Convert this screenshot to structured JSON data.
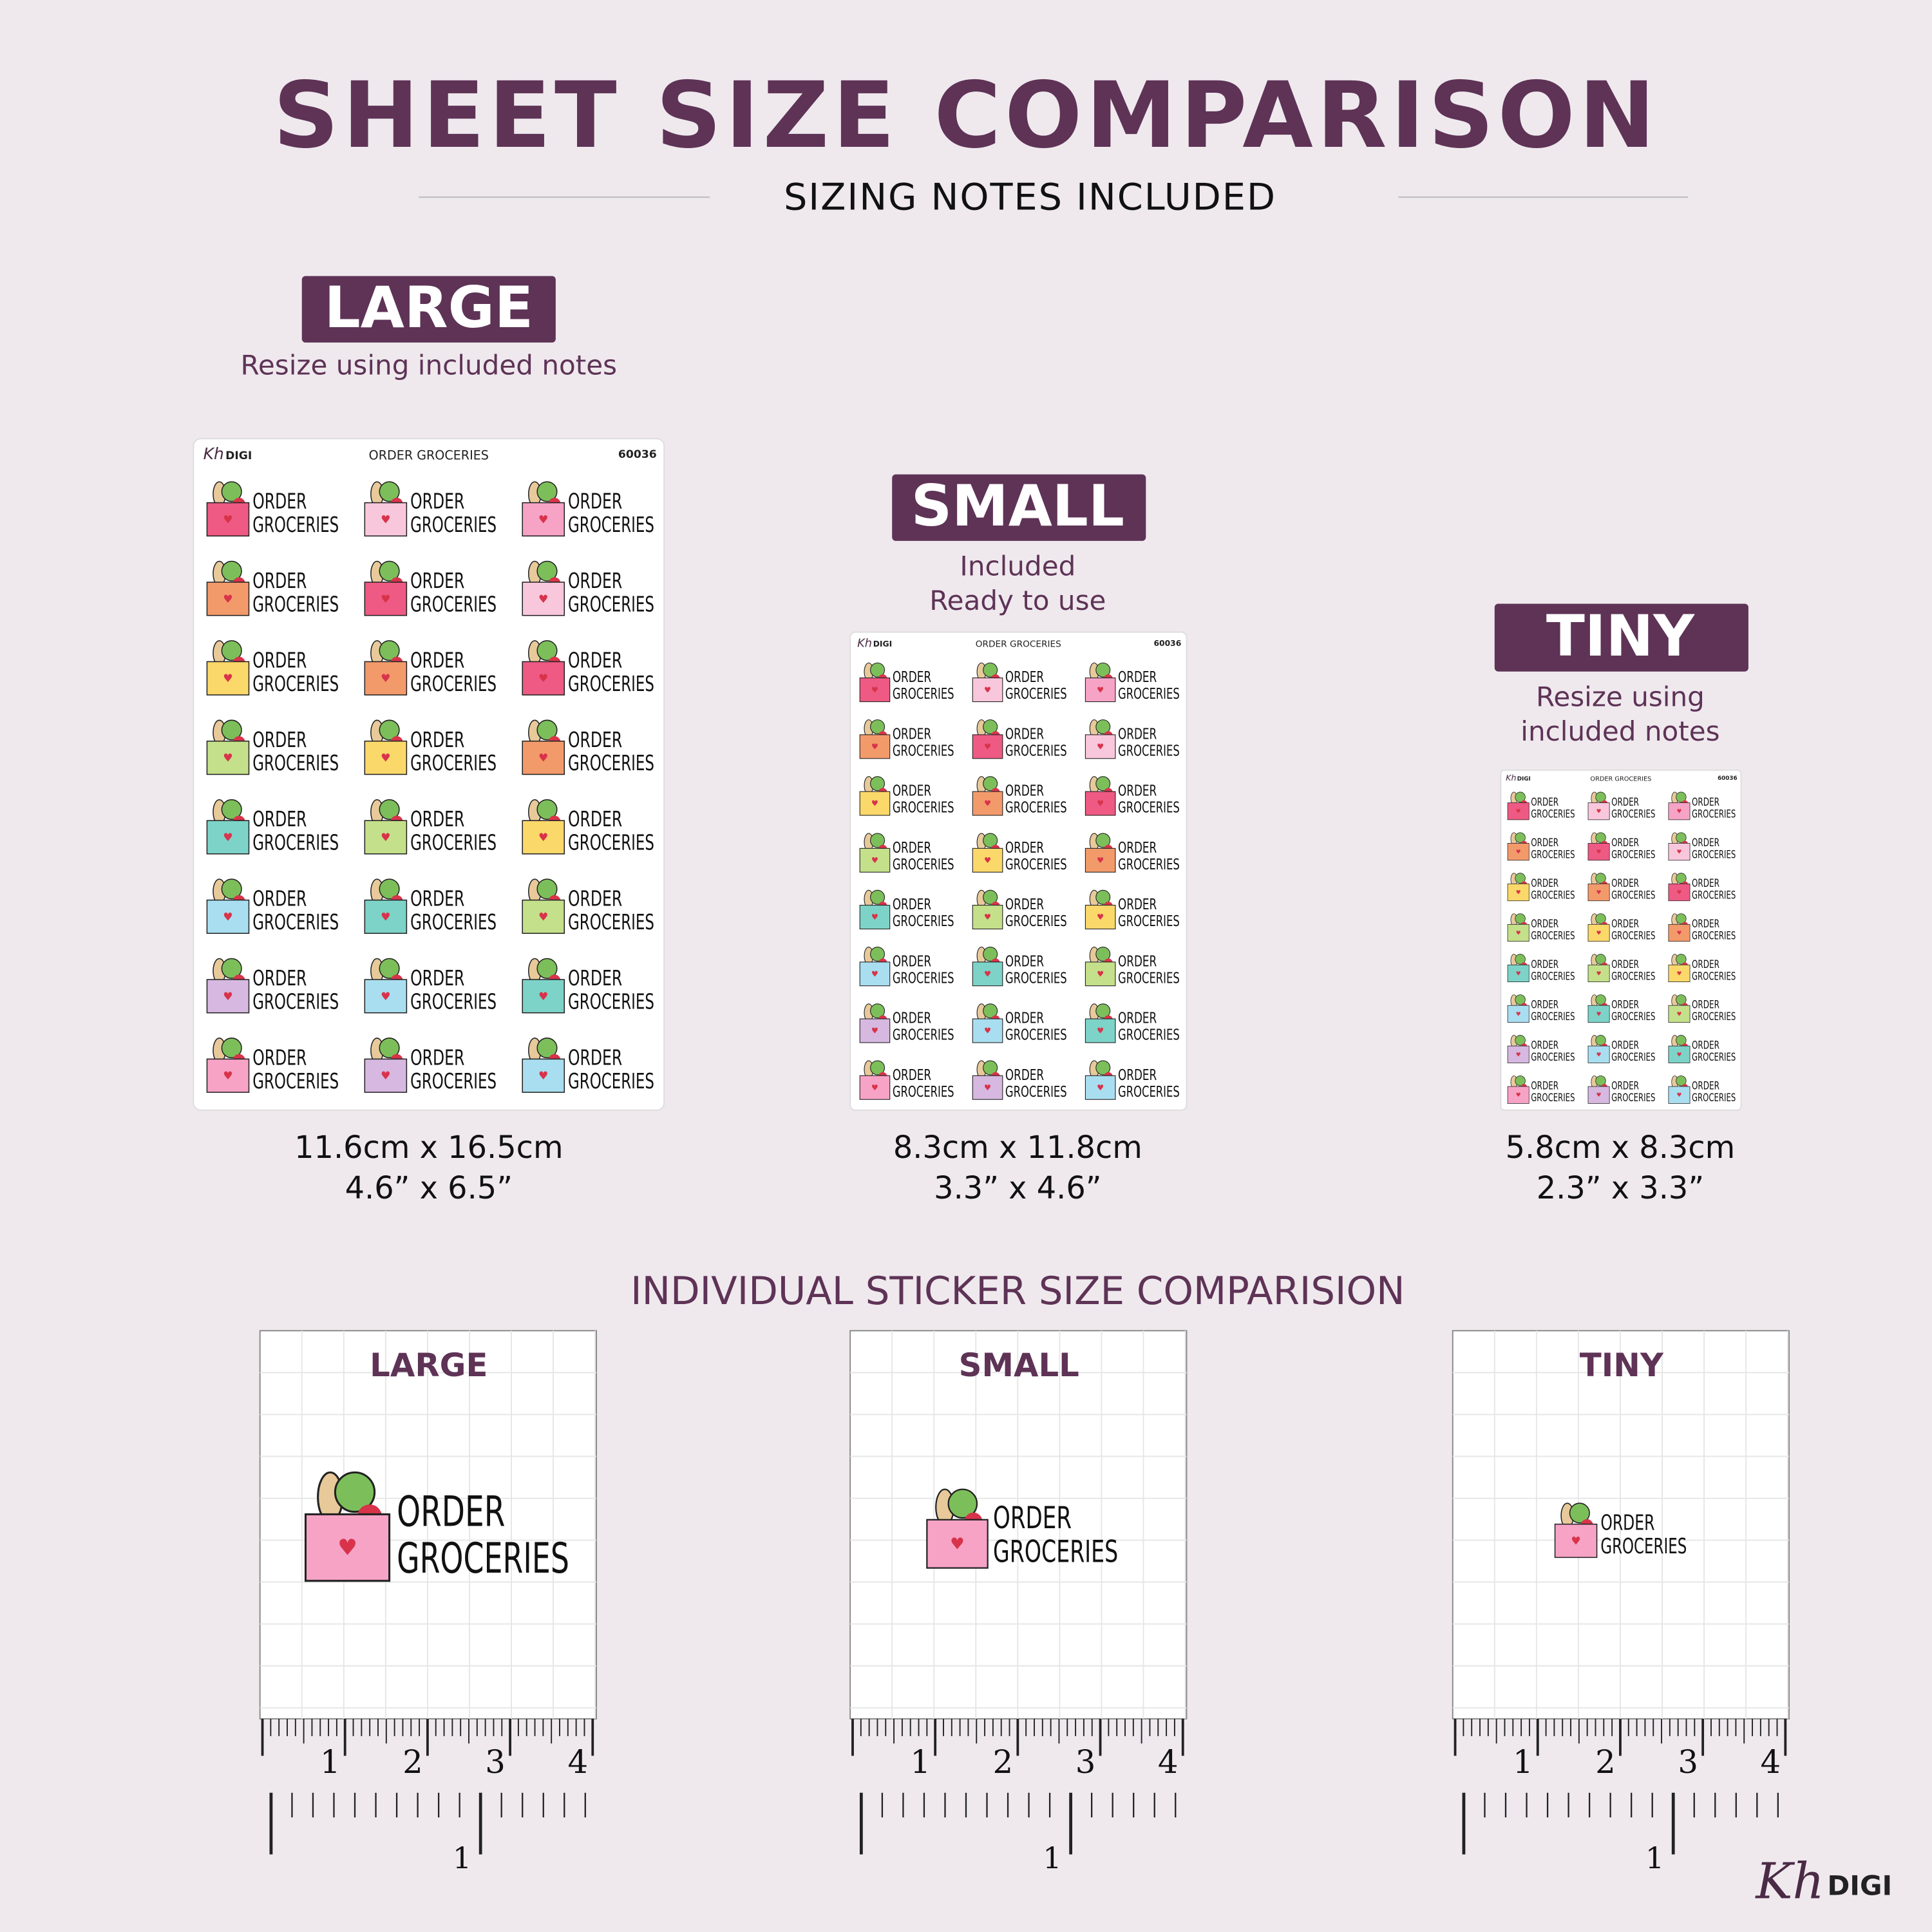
{
  "header": {
    "title": "SHEET SIZE COMPARISON",
    "subtitle": "SIZING NOTES INCLUDED"
  },
  "sheets": [
    {
      "label": "LARGE",
      "notes": [
        "Resize using included notes"
      ],
      "dims": [
        "11.6cm x 16.5cm",
        "4.6” x 6.5”"
      ]
    },
    {
      "label": "SMALL",
      "notes": [
        "Included",
        "Ready to use"
      ],
      "dims": [
        "8.3cm x 11.8cm",
        "3.3” x 4.6”"
      ]
    },
    {
      "label": "TINY",
      "notes": [
        "Resize using",
        "included notes"
      ],
      "dims": [
        "5.8cm x 8.3cm",
        "2.3” x 3.3”"
      ]
    }
  ],
  "sheet_header": {
    "name": "ORDER GROCERIES",
    "code": "60036"
  },
  "sticker": {
    "lines": [
      "ORDER",
      "GROCERIES"
    ],
    "bag_colors": [
      "#ee5a83",
      "#f9c7dc",
      "#f6a3c6",
      "#f39a6b",
      "#ee5a83",
      "#f9c7dc",
      "#fbd86a",
      "#f39a6b",
      "#ee5a83",
      "#c4e08a",
      "#fbd86a",
      "#f39a6b",
      "#7dd3c8",
      "#c4e08a",
      "#fbd86a",
      "#a9def0",
      "#7dd3c8",
      "#c4e08a",
      "#d6b8e0",
      "#a9def0",
      "#7dd3c8",
      "#f6a3c6",
      "#d6b8e0",
      "#a9def0"
    ],
    "panel_color": "#f6a3c6"
  },
  "individual": {
    "title": "INDIVIDUAL STICKER SIZE COMPARISION",
    "panels": [
      "LARGE",
      "SMALL",
      "TINY"
    ],
    "cm_labels": [
      1,
      2,
      3,
      4
    ],
    "inch_label": 1
  },
  "logo": {
    "kh": "Kh",
    "digi": "DIGI"
  }
}
